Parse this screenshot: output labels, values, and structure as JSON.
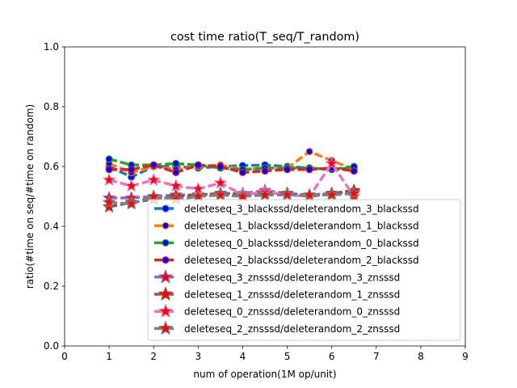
{
  "chart_data": {
    "type": "line",
    "title": "cost time ratio(T_seq/T_random)",
    "xlabel": "num of operation(1M op/unit)",
    "ylabel": "ratio(#time on seq/#time on random)",
    "xlim": [
      0,
      9
    ],
    "ylim": [
      0,
      1.0
    ],
    "xticks": [
      "0",
      "1",
      "2",
      "3",
      "4",
      "5",
      "6",
      "7",
      "8",
      "9"
    ],
    "yticks": [
      "0.0",
      "0.2",
      "0.4",
      "0.6",
      "0.8",
      "1.0"
    ],
    "grid": false,
    "legend_position": "lower-right",
    "x": [
      1.0,
      1.5,
      2.0,
      2.5,
      3.0,
      3.5,
      4.0,
      4.5,
      5.0,
      5.5,
      6.0,
      6.5
    ],
    "series": [
      {
        "name": "deleteseq_3_blackssd/deleterandom_3_blackssd",
        "color": "#1f77b4",
        "marker": "circle",
        "values": [
          0.6,
          0.565,
          0.6,
          0.6,
          0.595,
          0.6,
          0.603,
          0.605,
          0.6,
          0.595,
          0.59,
          0.595
        ]
      },
      {
        "name": "deleteseq_1_blackssd/deleterandom_1_blackssd",
        "color": "#ff7f0e",
        "marker": "circle",
        "values": [
          0.61,
          0.58,
          0.6,
          0.59,
          0.6,
          0.605,
          0.59,
          0.595,
          0.595,
          0.65,
          0.62,
          0.59
        ]
      },
      {
        "name": "deleteseq_0_blackssd/deleterandom_0_blackssd",
        "color": "#2ca02c",
        "marker": "circle",
        "values": [
          0.625,
          0.605,
          0.605,
          0.61,
          0.605,
          0.595,
          0.59,
          0.595,
          0.595,
          0.595,
          0.59,
          0.6
        ]
      },
      {
        "name": "deleteseq_2_blackssd/deleterandom_2_blackssd",
        "color": "#d62728",
        "marker": "circle",
        "values": [
          0.59,
          0.59,
          0.605,
          0.58,
          0.605,
          0.6,
          0.58,
          0.585,
          0.59,
          0.59,
          0.595,
          0.585
        ]
      },
      {
        "name": "deleteseq_3_znsssd/deleterandom_3_znsssd",
        "color": "#9467bd",
        "marker": "star",
        "values": [
          0.495,
          0.495,
          0.5,
          0.505,
          0.505,
          0.51,
          0.51,
          0.52,
          0.51,
          0.505,
          0.51,
          0.515
        ]
      },
      {
        "name": "deleteseq_1_znsssd/deleterandom_1_znsssd",
        "color": "#8c564b",
        "marker": "star",
        "values": [
          0.465,
          0.48,
          0.49,
          0.5,
          0.505,
          0.51,
          0.505,
          0.51,
          0.51,
          0.5,
          0.51,
          0.52
        ]
      },
      {
        "name": "deleteseq_0_znsssd/deleterandom_0_znsssd",
        "color": "#e377c2",
        "marker": "star",
        "values": [
          0.555,
          0.535,
          0.555,
          0.535,
          0.525,
          0.545,
          0.505,
          0.515,
          0.505,
          0.5,
          0.61,
          0.5
        ]
      },
      {
        "name": "deleteseq_2_znsssd/deleterandom_2_znsssd",
        "color": "#7f7f7f",
        "marker": "star",
        "values": [
          0.48,
          0.475,
          0.5,
          0.49,
          0.5,
          0.505,
          0.5,
          0.505,
          0.505,
          0.505,
          0.505,
          0.51
        ]
      }
    ]
  }
}
